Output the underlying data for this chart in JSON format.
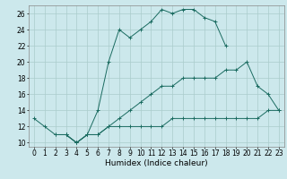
{
  "xlabel": "Humidex (Indice chaleur)",
  "bg_color": "#cce8ec",
  "grid_color": "#aacccc",
  "line_color": "#1a6b60",
  "line1_x": [
    0,
    1,
    2,
    3,
    4,
    5,
    6,
    7,
    8,
    9,
    10,
    11,
    12,
    13,
    14,
    15,
    16,
    17,
    18
  ],
  "line1_y": [
    13,
    12,
    11,
    11,
    10,
    11,
    14,
    20,
    24,
    23,
    24,
    25,
    26.5,
    26,
    26.5,
    26.5,
    25.5,
    25,
    22
  ],
  "line2_x": [
    3,
    4,
    5,
    6,
    7,
    8,
    9,
    10,
    11,
    12,
    13,
    14,
    15,
    16,
    17,
    18,
    19,
    20,
    21,
    22,
    23
  ],
  "line2_y": [
    11,
    10,
    11,
    11,
    12,
    13,
    14,
    15,
    16,
    17,
    17,
    18,
    18,
    18,
    18,
    19,
    19,
    20,
    17,
    16,
    14
  ],
  "line3_x": [
    2,
    3,
    4,
    5,
    6,
    7,
    8,
    9,
    10,
    11,
    12,
    13,
    14,
    15,
    16,
    17,
    18,
    19,
    20,
    21,
    22,
    23
  ],
  "line3_y": [
    11,
    11,
    10,
    11,
    11,
    12,
    12,
    12,
    12,
    12,
    12,
    13,
    13,
    13,
    13,
    13,
    13,
    13,
    13,
    13,
    14,
    14
  ],
  "xlim": [
    -0.5,
    23.5
  ],
  "ylim": [
    9.5,
    27
  ],
  "yticks": [
    10,
    12,
    14,
    16,
    18,
    20,
    22,
    24,
    26
  ],
  "xticks": [
    0,
    1,
    2,
    3,
    4,
    5,
    6,
    7,
    8,
    9,
    10,
    11,
    12,
    13,
    14,
    15,
    16,
    17,
    18,
    19,
    20,
    21,
    22,
    23
  ],
  "label_fontsize": 6.5,
  "tick_fontsize": 5.5
}
